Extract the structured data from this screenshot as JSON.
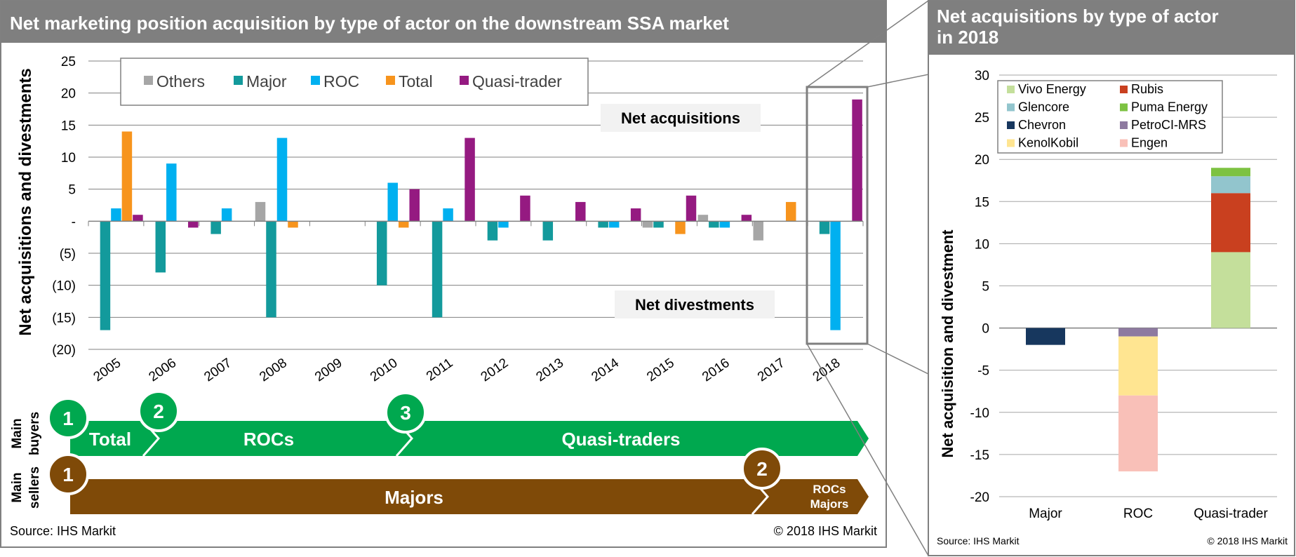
{
  "left_panel": {
    "title": "Net marketing position acquisition by type of actor on the downstream SSA market",
    "source": "Source: IHS Markit",
    "copyright": "© 2018 IHS Markit",
    "label_net_acquisitions": "Net acquisitions",
    "label_net_divestments": "Net divestments"
  },
  "timeline": {
    "buyers_label": [
      "Main",
      "buyers"
    ],
    "sellers_label": [
      "Main",
      "sellers"
    ],
    "buyers": [
      {
        "step": "1",
        "label": "Total"
      },
      {
        "step": "2",
        "label": "ROCs"
      },
      {
        "step": "3",
        "label": "Quasi-traders"
      }
    ],
    "sellers": [
      {
        "step": "1",
        "label": "Majors"
      },
      {
        "step": "2",
        "label": "ROCs\nMajors"
      }
    ],
    "colors": {
      "buyers": "#00a84f",
      "sellers": "#7f4a08"
    }
  },
  "right_panel": {
    "title": "Net acquisitions by type of actor in 2018",
    "source": "Source: IHS Markit",
    "copyright": "© 2018 IHS Markit"
  },
  "chart_data": [
    {
      "type": "bar",
      "title": "Net marketing position acquisition by type of actor on the downstream SSA market",
      "ylabel": "Net acquisitions and divestments",
      "ylim": [
        -20,
        25
      ],
      "yticks": [
        -20,
        -15,
        -10,
        -5,
        0,
        5,
        10,
        15,
        20,
        25
      ],
      "ytick_labels": [
        "(20)",
        "(15)",
        "(10)",
        "(5)",
        "-",
        "5",
        "10",
        "15",
        "20",
        "25"
      ],
      "categories": [
        "2005",
        "2006",
        "2007",
        "2008",
        "2009",
        "2010",
        "2011",
        "2012",
        "2013",
        "2014",
        "2015",
        "2016",
        "2017",
        "2018"
      ],
      "legend_placement": "top-left",
      "grid": true,
      "series": [
        {
          "name": "Others",
          "color": "#a6a6a6",
          "values": [
            0,
            0,
            0,
            3,
            0,
            0,
            0,
            0,
            0,
            0,
            -1,
            1,
            -3,
            0
          ]
        },
        {
          "name": "Major",
          "color": "#139a9c",
          "values": [
            -17,
            -8,
            -2,
            -15,
            0,
            -10,
            -15,
            -3,
            -3,
            -1,
            -1,
            -1,
            0,
            -2
          ]
        },
        {
          "name": "ROC",
          "color": "#00b0f0",
          "values": [
            2,
            9,
            2,
            13,
            0,
            6,
            2,
            -1,
            0,
            -1,
            0,
            -1,
            0,
            -17
          ]
        },
        {
          "name": "Total",
          "color": "#f7941d",
          "values": [
            14,
            0,
            0,
            -1,
            0,
            -1,
            0,
            0,
            0,
            0,
            -2,
            0,
            3,
            0
          ]
        },
        {
          "name": "Quasi-trader",
          "color": "#951a81",
          "values": [
            1,
            -1,
            0,
            0,
            0,
            5,
            13,
            4,
            3,
            2,
            4,
            1,
            0,
            19
          ]
        }
      ]
    },
    {
      "type": "bar",
      "stacked": true,
      "title": "Net acquisitions by type of actor in 2018",
      "ylabel": "Net acquisition and divestment",
      "ylim": [
        -20,
        30
      ],
      "yticks": [
        -20,
        -15,
        -10,
        -5,
        0,
        5,
        10,
        15,
        20,
        25,
        30
      ],
      "categories": [
        "Major",
        "ROC",
        "Quasi-trader"
      ],
      "legend_placement": "top-left",
      "grid": true,
      "series": [
        {
          "name": "Vivo Energy",
          "color": "#c4df9b",
          "values": [
            0,
            0,
            9
          ]
        },
        {
          "name": "Rubis",
          "color": "#c9401f",
          "values": [
            0,
            0,
            7
          ]
        },
        {
          "name": "Glencore",
          "color": "#92c5cd",
          "values": [
            0,
            0,
            2
          ]
        },
        {
          "name": "Puma Energy",
          "color": "#7dc242",
          "values": [
            0,
            0,
            1
          ]
        },
        {
          "name": "Chevron",
          "color": "#17375e",
          "values": [
            -2,
            0,
            0
          ]
        },
        {
          "name": "PetroCI-MRS",
          "color": "#8e7aa0",
          "values": [
            0,
            -1,
            0
          ]
        },
        {
          "name": "KenolKobil",
          "color": "#ffe591",
          "values": [
            0,
            -7,
            0
          ]
        },
        {
          "name": "Engen",
          "color": "#f9c0b8",
          "values": [
            0,
            -9,
            0
          ]
        }
      ]
    }
  ]
}
